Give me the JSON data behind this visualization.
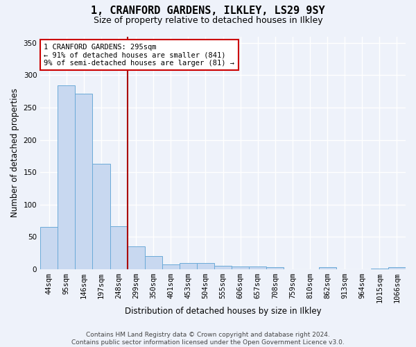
{
  "title_line1": "1, CRANFORD GARDENS, ILKLEY, LS29 9SY",
  "title_line2": "Size of property relative to detached houses in Ilkley",
  "xlabel": "Distribution of detached houses by size in Ilkley",
  "ylabel": "Number of detached properties",
  "categories": [
    "44sqm",
    "95sqm",
    "146sqm",
    "197sqm",
    "248sqm",
    "299sqm",
    "350sqm",
    "401sqm",
    "453sqm",
    "504sqm",
    "555sqm",
    "606sqm",
    "657sqm",
    "708sqm",
    "759sqm",
    "810sqm",
    "862sqm",
    "913sqm",
    "964sqm",
    "1015sqm",
    "1066sqm"
  ],
  "values": [
    65,
    284,
    271,
    163,
    66,
    35,
    20,
    7,
    9,
    9,
    5,
    4,
    4,
    3,
    0,
    0,
    3,
    0,
    0,
    1,
    3
  ],
  "bar_color": "#c8d8f0",
  "bar_edge_color": "#6baad8",
  "vline_color": "#aa0000",
  "vline_x_index": 4.5,
  "ylim": [
    0,
    360
  ],
  "yticks": [
    0,
    50,
    100,
    150,
    200,
    250,
    300,
    350
  ],
  "annotation_text": "1 CRANFORD GARDENS: 295sqm\n← 91% of detached houses are smaller (841)\n9% of semi-detached houses are larger (81) →",
  "box_facecolor": "#ffffff",
  "box_edgecolor": "#cc0000",
  "footnote": "Contains HM Land Registry data © Crown copyright and database right 2024.\nContains public sector information licensed under the Open Government Licence v3.0.",
  "bg_color": "#eef2fa",
  "grid_color": "#ffffff",
  "title_fontsize": 11,
  "subtitle_fontsize": 9,
  "ylabel_fontsize": 8.5,
  "xlabel_fontsize": 8.5,
  "tick_fontsize": 7.5,
  "annot_fontsize": 7.5,
  "footnote_fontsize": 6.5
}
